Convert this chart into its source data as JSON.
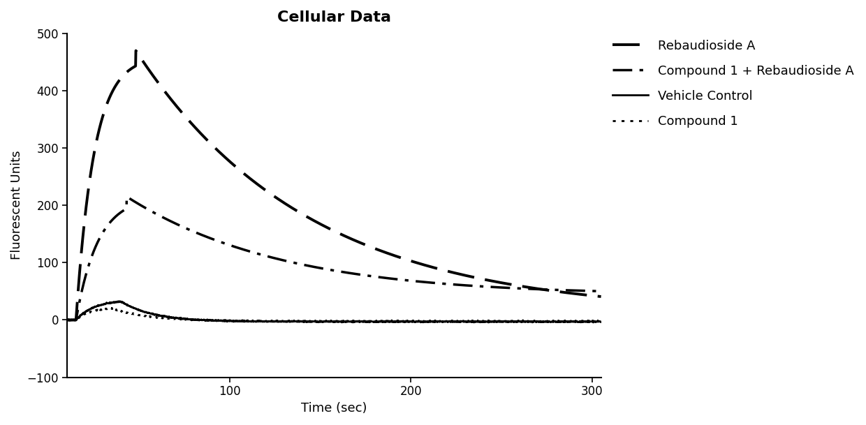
{
  "title": "Cellular Data",
  "xlabel": "Time (sec)",
  "ylabel": "Fluorescent Units",
  "xlim": [
    10,
    305
  ],
  "ylim": [
    -100,
    500
  ],
  "yticks": [
    -100,
    0,
    100,
    200,
    300,
    400,
    500
  ],
  "xticks": [
    100,
    200,
    300
  ],
  "background_color": "#ffffff",
  "series": {
    "rebaudioside_a": {
      "label": "Rebaudioside A",
      "color": "#000000",
      "linewidth": 2.8,
      "dashes": [
        10,
        4
      ]
    },
    "compound1_rebA": {
      "label": "Compound 1 + Rebaudioside A",
      "color": "#000000",
      "linewidth": 2.5,
      "dashes": [
        8,
        3,
        1.5,
        3
      ]
    },
    "vehicle_control": {
      "label": "Vehicle Control",
      "color": "#000000",
      "linewidth": 2.0
    },
    "compound1": {
      "label": "Compound 1",
      "color": "#000000",
      "linewidth": 2.0,
      "dashes": [
        1.5,
        3
      ]
    }
  },
  "title_fontsize": 16,
  "title_fontweight": "bold",
  "axis_label_fontsize": 13,
  "tick_fontsize": 12,
  "legend_fontsize": 13
}
